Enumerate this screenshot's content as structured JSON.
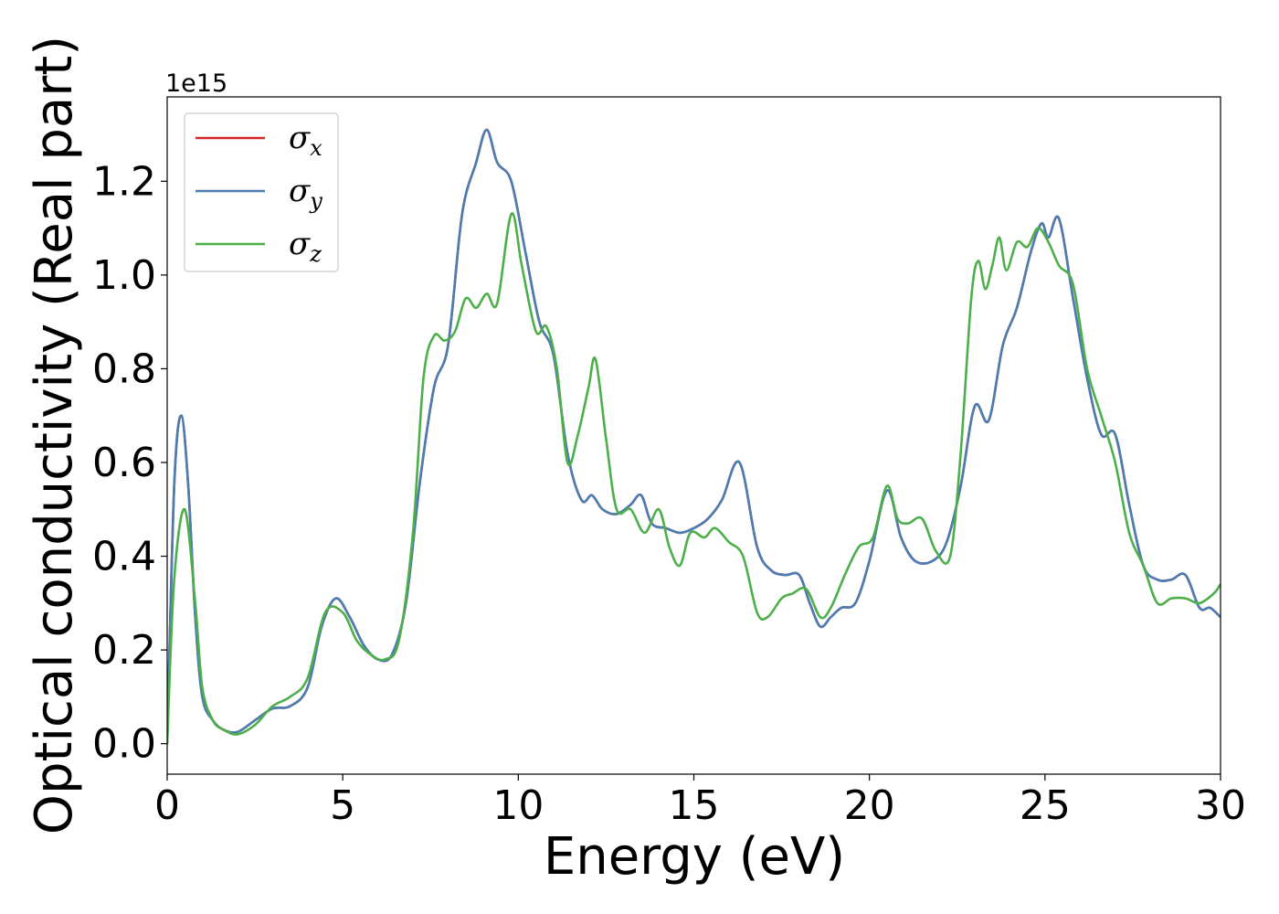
{
  "chart_data": {
    "type": "line",
    "xlabel": "Energy (eV)",
    "ylabel": "Optical conductivity (Real part)",
    "y_offset_label": "1e15",
    "xlim": [
      0,
      30
    ],
    "ylim": [
      -0.065,
      1.38
    ],
    "x_ticks": [
      0,
      5,
      10,
      15,
      20,
      25,
      30
    ],
    "y_ticks": [
      0.0,
      0.2,
      0.4,
      0.6,
      0.8,
      1.0,
      1.2
    ],
    "x_tick_labels": [
      "0",
      "5",
      "10",
      "15",
      "20",
      "25",
      "30"
    ],
    "y_tick_labels": [
      "0.0",
      "0.2",
      "0.4",
      "0.6",
      "0.8",
      "1.0",
      "1.2"
    ],
    "grid": false,
    "legend_position": "top-left",
    "series": [
      {
        "name": "σx",
        "base": "σ",
        "sub": "x",
        "color": "#d62728",
        "x": [
          0,
          0.2,
          0.4,
          0.6,
          0.8,
          1.0,
          1.3,
          1.6,
          2.0,
          2.5,
          3.0,
          3.5,
          4.0,
          4.4,
          4.8,
          5.2,
          5.6,
          6.0,
          6.4,
          6.8,
          7.2,
          7.6,
          8.0,
          8.4,
          8.8,
          9.1,
          9.4,
          9.8,
          10.2,
          10.6,
          11.0,
          11.4,
          11.8,
          12.1,
          12.4,
          12.8,
          13.2,
          13.5,
          13.8,
          14.2,
          14.6,
          15.0,
          15.4,
          15.8,
          16.3,
          16.8,
          17.2,
          17.6,
          18.0,
          18.3,
          18.6,
          18.9,
          19.2,
          19.6,
          20.0,
          20.5,
          20.9,
          21.3,
          21.8,
          22.2,
          22.6,
          23.0,
          23.4,
          23.8,
          24.2,
          24.6,
          24.9,
          25.1,
          25.4,
          25.8,
          26.2,
          26.6,
          27.0,
          27.4,
          27.8,
          28.2,
          28.6,
          29.0,
          29.4,
          29.7,
          30.0
        ],
        "values": [
          0.0,
          0.55,
          0.7,
          0.55,
          0.27,
          0.1,
          0.05,
          0.03,
          0.025,
          0.05,
          0.075,
          0.08,
          0.12,
          0.25,
          0.31,
          0.27,
          0.21,
          0.18,
          0.19,
          0.3,
          0.56,
          0.76,
          0.85,
          1.13,
          1.24,
          1.31,
          1.24,
          1.2,
          1.05,
          0.9,
          0.83,
          0.62,
          0.52,
          0.53,
          0.5,
          0.49,
          0.51,
          0.53,
          0.47,
          0.46,
          0.45,
          0.46,
          0.48,
          0.52,
          0.6,
          0.42,
          0.37,
          0.36,
          0.36,
          0.3,
          0.25,
          0.27,
          0.29,
          0.3,
          0.39,
          0.54,
          0.44,
          0.39,
          0.39,
          0.43,
          0.55,
          0.72,
          0.69,
          0.85,
          0.93,
          1.05,
          1.11,
          1.08,
          1.12,
          0.95,
          0.78,
          0.66,
          0.66,
          0.51,
          0.38,
          0.35,
          0.35,
          0.36,
          0.29,
          0.29,
          0.27
        ]
      },
      {
        "name": "σy",
        "base": "σ",
        "sub": "y",
        "color": "#4a7eb3",
        "x": [
          0,
          0.2,
          0.4,
          0.6,
          0.8,
          1.0,
          1.3,
          1.6,
          2.0,
          2.5,
          3.0,
          3.5,
          4.0,
          4.4,
          4.8,
          5.2,
          5.6,
          6.0,
          6.4,
          6.8,
          7.2,
          7.6,
          8.0,
          8.4,
          8.8,
          9.1,
          9.4,
          9.8,
          10.2,
          10.6,
          11.0,
          11.4,
          11.8,
          12.1,
          12.4,
          12.8,
          13.2,
          13.5,
          13.8,
          14.2,
          14.6,
          15.0,
          15.4,
          15.8,
          16.3,
          16.8,
          17.2,
          17.6,
          18.0,
          18.3,
          18.6,
          18.9,
          19.2,
          19.6,
          20.0,
          20.5,
          20.9,
          21.3,
          21.8,
          22.2,
          22.6,
          23.0,
          23.4,
          23.8,
          24.2,
          24.6,
          24.9,
          25.1,
          25.4,
          25.8,
          26.2,
          26.6,
          27.0,
          27.4,
          27.8,
          28.2,
          28.6,
          29.0,
          29.4,
          29.7,
          30.0
        ],
        "values": [
          0.0,
          0.55,
          0.7,
          0.55,
          0.27,
          0.1,
          0.05,
          0.03,
          0.025,
          0.05,
          0.075,
          0.08,
          0.12,
          0.25,
          0.31,
          0.27,
          0.21,
          0.18,
          0.19,
          0.3,
          0.56,
          0.76,
          0.85,
          1.13,
          1.24,
          1.31,
          1.24,
          1.2,
          1.05,
          0.9,
          0.83,
          0.62,
          0.52,
          0.53,
          0.5,
          0.49,
          0.51,
          0.53,
          0.47,
          0.46,
          0.45,
          0.46,
          0.48,
          0.52,
          0.6,
          0.42,
          0.37,
          0.36,
          0.36,
          0.3,
          0.25,
          0.27,
          0.29,
          0.3,
          0.39,
          0.54,
          0.44,
          0.39,
          0.39,
          0.43,
          0.55,
          0.72,
          0.69,
          0.85,
          0.93,
          1.05,
          1.11,
          1.08,
          1.12,
          0.95,
          0.78,
          0.66,
          0.66,
          0.51,
          0.38,
          0.35,
          0.35,
          0.36,
          0.29,
          0.29,
          0.27
        ]
      },
      {
        "name": "σz",
        "base": "σ",
        "sub": "z",
        "color": "#4daf4a",
        "x": [
          0,
          0.2,
          0.5,
          0.8,
          1.0,
          1.3,
          1.6,
          2.0,
          2.5,
          3.0,
          3.5,
          4.0,
          4.5,
          5.0,
          5.4,
          5.8,
          6.2,
          6.6,
          7.0,
          7.3,
          7.6,
          7.9,
          8.2,
          8.5,
          8.8,
          9.1,
          9.4,
          9.8,
          10.1,
          10.5,
          10.8,
          11.1,
          11.4,
          11.7,
          12.0,
          12.2,
          12.5,
          12.8,
          13.2,
          13.6,
          14.0,
          14.3,
          14.6,
          14.9,
          15.3,
          15.6,
          16.0,
          16.4,
          16.8,
          17.1,
          17.5,
          17.8,
          18.2,
          18.6,
          18.9,
          19.3,
          19.7,
          20.1,
          20.5,
          20.8,
          21.1,
          21.5,
          21.9,
          22.3,
          22.6,
          22.9,
          23.1,
          23.3,
          23.5,
          23.7,
          23.9,
          24.2,
          24.5,
          24.8,
          25.1,
          25.4,
          25.8,
          26.2,
          26.6,
          27.0,
          27.4,
          27.8,
          28.2,
          28.6,
          29.0,
          29.4,
          29.8,
          30.0
        ],
        "values": [
          0.0,
          0.35,
          0.5,
          0.3,
          0.12,
          0.05,
          0.03,
          0.02,
          0.04,
          0.08,
          0.1,
          0.14,
          0.28,
          0.28,
          0.22,
          0.19,
          0.18,
          0.22,
          0.45,
          0.78,
          0.87,
          0.86,
          0.88,
          0.95,
          0.93,
          0.96,
          0.94,
          1.13,
          1.02,
          0.88,
          0.89,
          0.8,
          0.6,
          0.66,
          0.76,
          0.82,
          0.65,
          0.5,
          0.5,
          0.45,
          0.5,
          0.42,
          0.38,
          0.45,
          0.44,
          0.46,
          0.43,
          0.4,
          0.28,
          0.27,
          0.31,
          0.32,
          0.33,
          0.27,
          0.29,
          0.36,
          0.42,
          0.44,
          0.55,
          0.48,
          0.47,
          0.48,
          0.41,
          0.4,
          0.62,
          0.95,
          1.03,
          0.97,
          1.02,
          1.08,
          1.01,
          1.07,
          1.06,
          1.1,
          1.07,
          1.02,
          0.98,
          0.8,
          0.7,
          0.6,
          0.45,
          0.38,
          0.3,
          0.31,
          0.31,
          0.3,
          0.32,
          0.34
        ]
      }
    ]
  }
}
